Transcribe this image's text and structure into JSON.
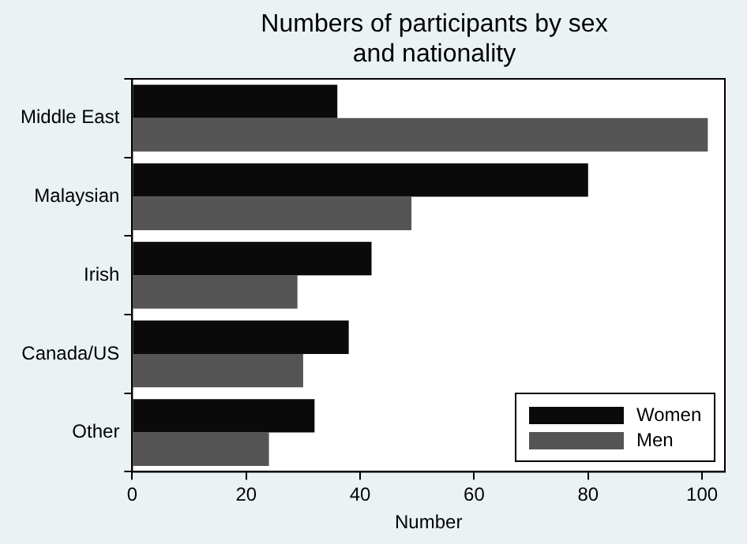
{
  "chart_data": {
    "type": "bar",
    "orientation": "horizontal",
    "title": "Numbers of participants by sex and nationality",
    "xlabel": "Number",
    "categories": [
      "Middle East",
      "Malaysian",
      "Irish",
      "Canada/US",
      "Other"
    ],
    "series": [
      {
        "name": "Women",
        "color": "#0a0a0a",
        "values": [
          36,
          80,
          42,
          38,
          32
        ]
      },
      {
        "name": "Men",
        "color": "#555555",
        "values": [
          101,
          49,
          29,
          30,
          24
        ]
      }
    ],
    "xlim": [
      0,
      104
    ],
    "xticks": [
      0,
      20,
      40,
      60,
      80,
      100
    ],
    "grid": false,
    "legend": "bottom right"
  }
}
